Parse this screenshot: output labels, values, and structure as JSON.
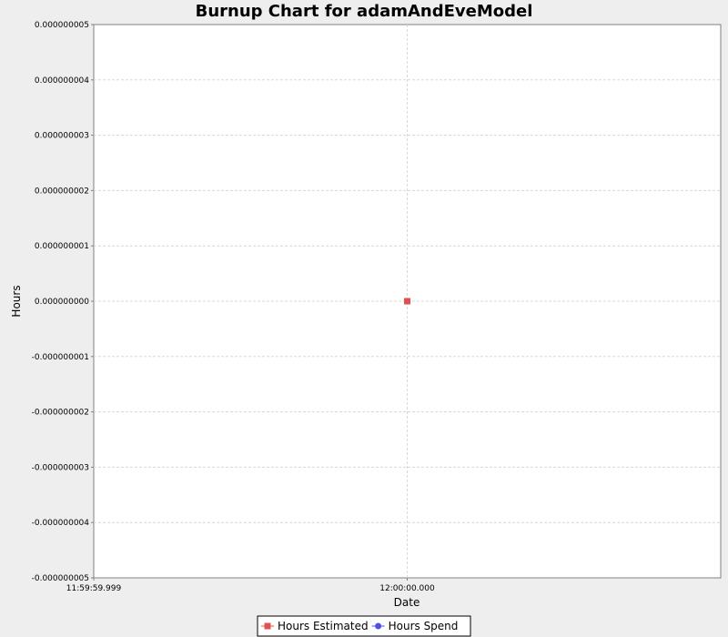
{
  "chart_data": {
    "type": "line",
    "title": "Burnup Chart for adamAndEveModel",
    "xlabel": "Date",
    "ylabel": "Hours",
    "x_ticks": [
      "11:59:59.999",
      "12:00:00.000"
    ],
    "y_ticks": [
      "0.000000005",
      "0.000000004",
      "0.000000003",
      "0.000000002",
      "0.000000001",
      "0.000000000",
      "-0.000000001",
      "-0.000000002",
      "-0.000000003",
      "-0.000000004",
      "-0.000000005"
    ],
    "ylim": [
      -5e-09,
      5e-09
    ],
    "xlim": [
      "11:59:59.999",
      "12:00:00.001"
    ],
    "grid": true,
    "legend_position": "bottom",
    "series": [
      {
        "name": "Hours Estimated",
        "color": "#e05050",
        "marker": "square",
        "points": [
          {
            "x": "12:00:00.000",
            "y": 0
          }
        ]
      },
      {
        "name": "Hours Spend",
        "color": "#5050e0",
        "marker": "circle",
        "points": []
      }
    ]
  },
  "colors": {
    "background": "#eeeeee",
    "plot_background": "#ffffff",
    "gridline": "#d8d8d8",
    "axis_line": "#808080"
  }
}
